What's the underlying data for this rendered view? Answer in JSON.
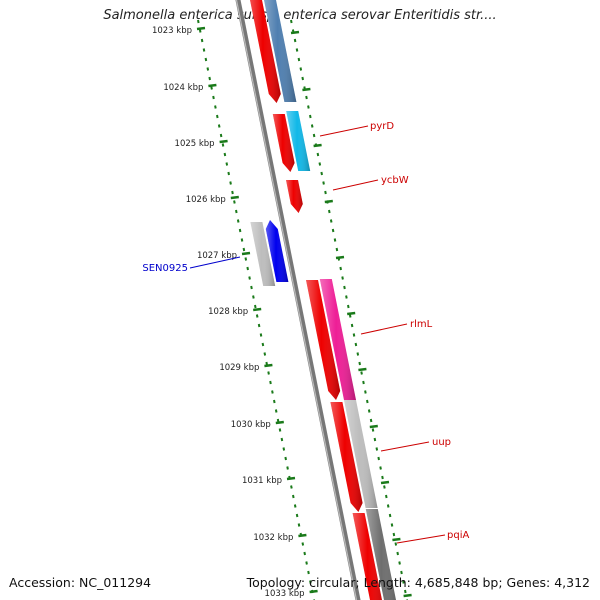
{
  "title": "Salmonella enterica subsp. enterica serovar Enteritidis str....",
  "accession": "Accession: NC_011294",
  "summary": "Topology: circular; Length: 4,685,848 bp; Genes: 4,312",
  "ruler": {
    "labels": [
      "1023 kbp",
      "1024 kbp",
      "1025 kbp",
      "1026 kbp",
      "1027 kbp",
      "1028 kbp",
      "1029 kbp",
      "1030 kbp",
      "1031 kbp",
      "1032 kbp",
      "1033 kbp"
    ],
    "color": "#1a7a1a"
  },
  "gene_labels": [
    {
      "text": "pyrD",
      "color": "#cc0000"
    },
    {
      "text": "ycbW",
      "color": "#cc0000"
    },
    {
      "text": "rlmL",
      "color": "#cc0000"
    },
    {
      "text": "uup",
      "color": "#cc0000"
    },
    {
      "text": "pqiA",
      "color": "#cc0000"
    },
    {
      "text": "SEN0925",
      "color": "#0000cc"
    }
  ],
  "colors": {
    "red": "#ee0000",
    "blue": "#0000ee",
    "steel": "#4f7fb0",
    "cyan": "#10b8e8",
    "magenta": "#ee1e96",
    "lightgray": "#bdbdbd",
    "darkgray": "#6e6e6e",
    "backbone": "#777777"
  }
}
